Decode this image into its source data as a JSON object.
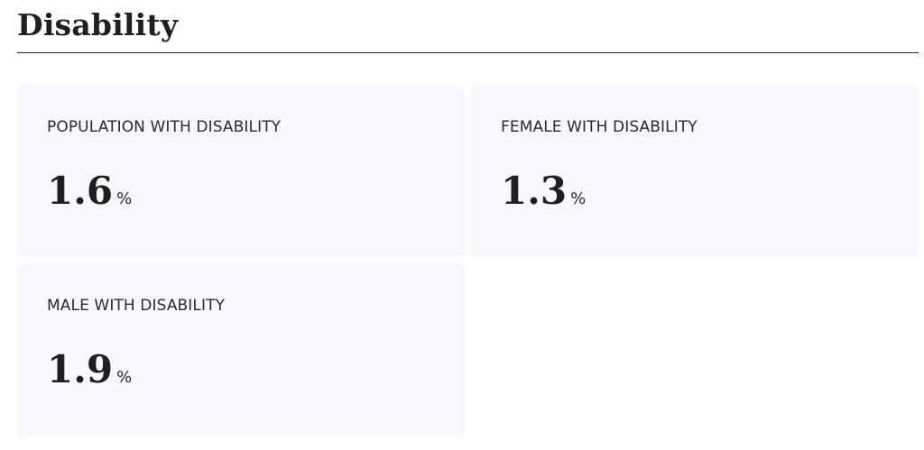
{
  "section": {
    "title": "Disability"
  },
  "cards": [
    {
      "label": "POPULATION WITH DISABILITY",
      "value": "1.6",
      "unit": "%"
    },
    {
      "label": "FEMALE WITH DISABILITY",
      "value": "1.3",
      "unit": "%"
    },
    {
      "label": "MALE WITH DISABILITY",
      "value": "1.9",
      "unit": "%"
    }
  ],
  "colors": {
    "card_background": "#f8f7fd",
    "text": "#1f1f1f",
    "rule": "#2b2b2b"
  }
}
